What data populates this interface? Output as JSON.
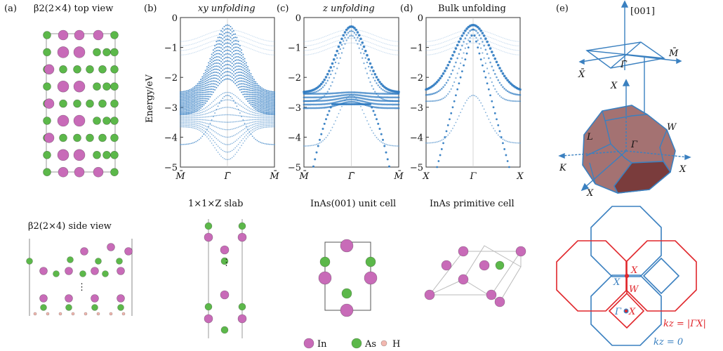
{
  "panels": {
    "a": {
      "tag": "(a)",
      "top_title": "β2(2×4) top view",
      "side_title": "β2(2×4) side view"
    },
    "b": {
      "tag": "(b)",
      "title": "xy unfolding",
      "xticks": [
        "M̄",
        "Γ̄",
        "M̄"
      ],
      "below_title": "1×1×Z slab"
    },
    "c": {
      "tag": "(c)",
      "title": "z unfolding",
      "xticks": [
        "M̄",
        "Γ̄",
        "M̄"
      ],
      "below_title": "InAs(001) unit cell"
    },
    "d": {
      "tag": "(d)",
      "title": "Bulk unfolding",
      "xticks": [
        "X",
        "Γ",
        "X"
      ],
      "below_title": "InAs primitive cell"
    },
    "e": {
      "tag": "(e)",
      "axis": "[001]",
      "surface_labels": {
        "xbar": "X̄",
        "gbar": "Γ̄",
        "mbar": "M̄"
      },
      "bulk_labels": {
        "x_top": "X",
        "l": "L",
        "g": "Γ",
        "w": "W",
        "k": "K",
        "x_right": "X",
        "x_bottom": "X"
      },
      "plane_labels": {
        "x_red": "X",
        "x_blue": "X",
        "w_red": "W",
        "g_blue": "Γ",
        "x_center": "X",
        "kz_gx": "kz = |ΓX|",
        "kz_0": "kz = 0"
      }
    }
  },
  "yaxis": {
    "label": "Energy/eV",
    "ticks": [
      "0",
      "−1",
      "−2",
      "−3",
      "−4",
      "−5"
    ],
    "range": [
      -5,
      0
    ]
  },
  "legend": [
    {
      "label": "In",
      "color": "#c86bb8"
    },
    {
      "label": "As",
      "color": "#5cb84a"
    },
    {
      "label": "H",
      "color": "#f2b8b0"
    }
  ],
  "colors": {
    "band": "#2a78c0",
    "red": "#e0262b",
    "blue": "#3a80c0",
    "bz_fill": "#a47272",
    "bz_dark": "#7a3c3c"
  }
}
